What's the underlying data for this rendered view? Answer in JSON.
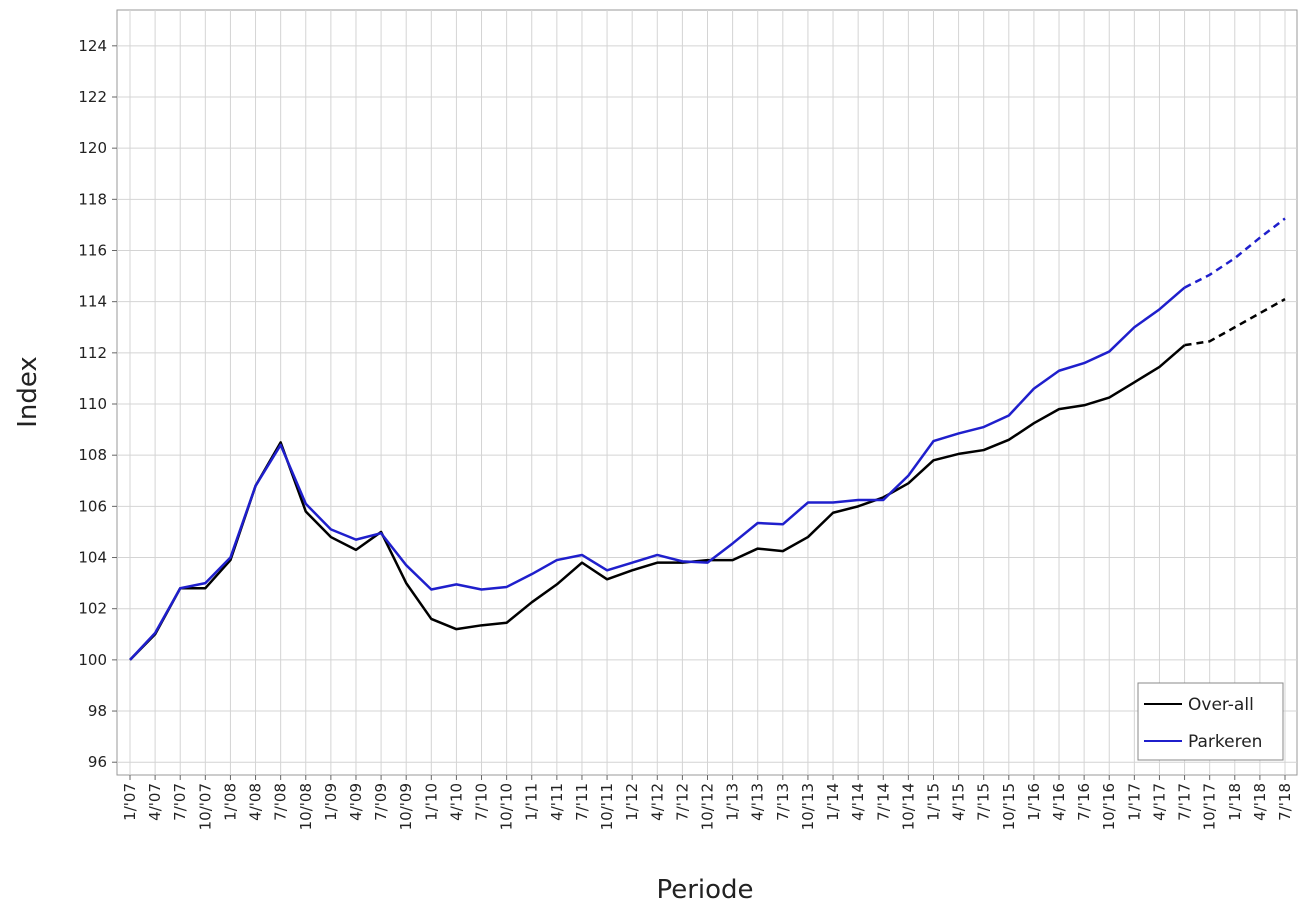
{
  "chart_data": {
    "type": "line",
    "x_label": "Periode",
    "y_label": "Index",
    "categories": [
      "1/'07",
      "4/'07",
      "7/'07",
      "10/'07",
      "1/'08",
      "4/'08",
      "7/'08",
      "10/'08",
      "1/'09",
      "4/'09",
      "7/'09",
      "10/'09",
      "1/'10",
      "4/'10",
      "7/'10",
      "10/'10",
      "1/'11",
      "4/'11",
      "7/'11",
      "10/'11",
      "1/'12",
      "4/'12",
      "7/'12",
      "10/'12",
      "1/'13",
      "4/'13",
      "7/'13",
      "10/'13",
      "1/'14",
      "4/'14",
      "7/'14",
      "10/'14",
      "1/'15",
      "4/'15",
      "7/'15",
      "10/'15",
      "1/'16",
      "4/'16",
      "7/'16",
      "10/'16",
      "1/'17",
      "4/'17",
      "7/'17",
      "10/'17",
      "1/'18",
      "4/'18",
      "7/'18"
    ],
    "series": [
      {
        "name": "Over-all",
        "color": "#000000",
        "values": [
          100,
          101.0,
          102.8,
          102.8,
          103.9,
          106.8,
          108.5,
          105.8,
          104.8,
          104.3,
          105.0,
          103.0,
          101.6,
          101.2,
          101.35,
          101.45,
          102.25,
          102.95,
          103.8,
          103.15,
          103.5,
          103.8,
          103.8,
          103.9,
          103.9,
          104.35,
          104.25,
          104.8,
          105.75,
          106.0,
          106.35,
          106.9,
          107.8,
          108.05,
          108.2,
          108.6,
          109.25,
          109.8,
          109.95,
          110.25,
          110.85,
          111.45,
          112.3,
          112.45,
          113.0,
          113.55,
          114.1
        ]
      },
      {
        "name": "Parkeren",
        "color": "#1f1fcc",
        "values": [
          100,
          101.05,
          102.8,
          103.0,
          104.0,
          106.8,
          108.4,
          106.1,
          105.1,
          104.7,
          104.95,
          103.7,
          102.75,
          102.95,
          102.75,
          102.85,
          103.35,
          103.9,
          104.1,
          103.5,
          103.8,
          104.1,
          103.85,
          103.8,
          104.55,
          105.35,
          105.3,
          106.15,
          106.15,
          106.25,
          106.25,
          107.2,
          108.55,
          108.85,
          109.1,
          109.55,
          110.6,
          111.3,
          111.6,
          112.05,
          113.0,
          113.7,
          114.55,
          115.05,
          115.7,
          116.5,
          117.25
        ]
      }
    ],
    "dashed_from": "7/'17",
    "ylim": [
      95.5,
      125.4
    ],
    "yticks": [
      96,
      98,
      100,
      102,
      104,
      106,
      108,
      110,
      112,
      114,
      116,
      118,
      120,
      122,
      124
    ],
    "grid": true,
    "legend": "lower right"
  }
}
